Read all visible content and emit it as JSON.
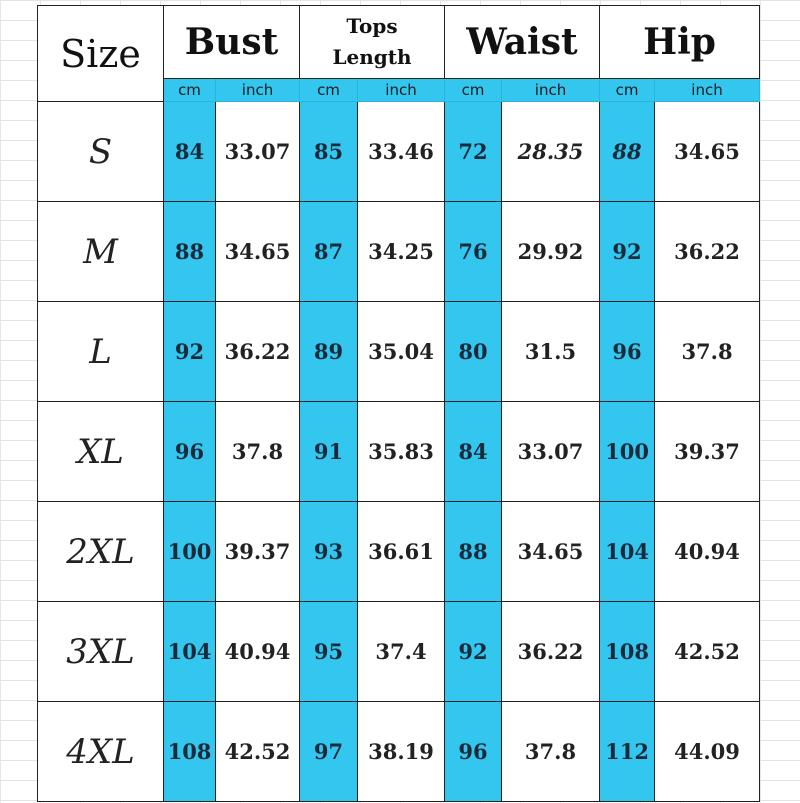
{
  "header": {
    "size_label": "Size",
    "columns": [
      {
        "title_lines": [
          "Bust"
        ],
        "units": [
          "cm",
          "inch"
        ]
      },
      {
        "title_lines": [
          "Tops",
          "Length"
        ],
        "units": [
          "cm",
          "inch"
        ]
      },
      {
        "title_lines": [
          "Waist"
        ],
        "units": [
          "cm",
          "inch"
        ]
      },
      {
        "title_lines": [
          "Hip"
        ],
        "units": [
          "cm",
          "inch"
        ]
      }
    ]
  },
  "rows": [
    {
      "size": "S",
      "values": [
        "84",
        "33.07",
        "85",
        "33.46",
        "72",
        "28.35",
        "88",
        "34.65"
      ]
    },
    {
      "size": "M",
      "values": [
        "88",
        "34.65",
        "87",
        "34.25",
        "76",
        "29.92",
        "92",
        "36.22"
      ]
    },
    {
      "size": "L",
      "values": [
        "92",
        "36.22",
        "89",
        "35.04",
        "80",
        "31.5",
        "96",
        "37.8"
      ]
    },
    {
      "size": "XL",
      "values": [
        "96",
        "37.8",
        "91",
        "35.83",
        "84",
        "33.07",
        "100",
        "39.37"
      ]
    },
    {
      "size": "2XL",
      "values": [
        "100",
        "39.37",
        "93",
        "36.61",
        "88",
        "34.65",
        "104",
        "40.94"
      ]
    },
    {
      "size": "3XL",
      "values": [
        "104",
        "40.94",
        "95",
        "37.4",
        "92",
        "36.22",
        "108",
        "42.52"
      ]
    },
    {
      "size": "4XL",
      "values": [
        "108",
        "42.52",
        "97",
        "38.19",
        "96",
        "37.8",
        "112",
        "44.09"
      ]
    }
  ],
  "colors": {
    "accent": "#33c6ee",
    "border": "#222222",
    "text": "#222222"
  }
}
